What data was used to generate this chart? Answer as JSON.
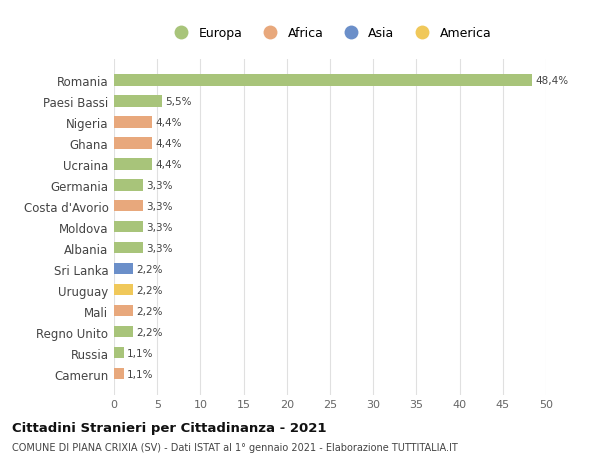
{
  "title1": "Cittadini Stranieri per Cittadinanza - 2021",
  "title2": "COMUNE DI PIANA CRIXIA (SV) - Dati ISTAT al 1° gennaio 2021 - Elaborazione TUTTITALIA.IT",
  "categories": [
    "Romania",
    "Paesi Bassi",
    "Nigeria",
    "Ghana",
    "Ucraina",
    "Germania",
    "Costa d'Avorio",
    "Moldova",
    "Albania",
    "Sri Lanka",
    "Uruguay",
    "Mali",
    "Regno Unito",
    "Russia",
    "Camerun"
  ],
  "values": [
    48.4,
    5.5,
    4.4,
    4.4,
    4.4,
    3.3,
    3.3,
    3.3,
    3.3,
    2.2,
    2.2,
    2.2,
    2.2,
    1.1,
    1.1
  ],
  "labels": [
    "48,4%",
    "5,5%",
    "4,4%",
    "4,4%",
    "4,4%",
    "3,3%",
    "3,3%",
    "3,3%",
    "3,3%",
    "2,2%",
    "2,2%",
    "2,2%",
    "2,2%",
    "1,1%",
    "1,1%"
  ],
  "colors": [
    "#a8c47a",
    "#a8c47a",
    "#e8a87c",
    "#e8a87c",
    "#a8c47a",
    "#a8c47a",
    "#e8a87c",
    "#a8c47a",
    "#a8c47a",
    "#6b8fc9",
    "#f0c85a",
    "#e8a87c",
    "#a8c47a",
    "#a8c47a",
    "#e8a87c"
  ],
  "continent_colors": {
    "Europa": "#a8c47a",
    "Africa": "#e8a87c",
    "Asia": "#6b8fc9",
    "America": "#f0c85a"
  },
  "xlim": [
    0,
    50
  ],
  "xticks": [
    0,
    5,
    10,
    15,
    20,
    25,
    30,
    35,
    40,
    45,
    50
  ],
  "background_color": "#ffffff",
  "grid_color": "#e0e0e0"
}
